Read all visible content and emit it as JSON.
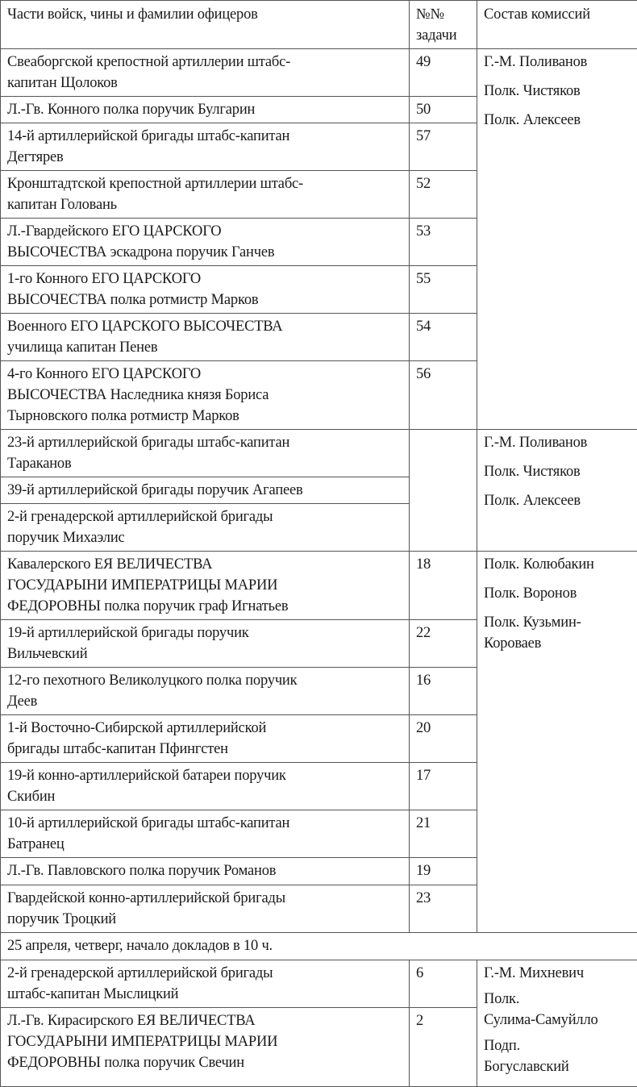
{
  "header": {
    "col1": "Части войск, чины и фамилии офицеров",
    "col2": "№№\nзадачи",
    "col3": "Состав комиссий"
  },
  "groups": [
    {
      "committee": [
        "Г.-М. Поливанов",
        "Полк. Чистяков",
        "Полк. Алексеев"
      ],
      "merge_task": false,
      "rows": [
        {
          "unit": "Свеаборгской крепостной артиллерии штабс-\nкапитан Щолоков",
          "task": "49",
          "h": 57
        },
        {
          "unit": "Л.-Гв. Конного полка поручик Булгарин",
          "task": "50",
          "h": 33
        },
        {
          "unit": "14-й артиллерийской бригады штабс-капитан\nДегтярев",
          "task": "57",
          "h": 55
        },
        {
          "unit": "Кронштадтской крепостной артиллерии штабс-\nкапитан Головань",
          "task": "52",
          "h": 57
        },
        {
          "unit": "Л.-Гвардейского ЕГО ЦАРСКОГО\nВЫСОЧЕСТВА эскадрона поручик Ганчев",
          "task": "53",
          "h": 56
        },
        {
          "unit": "1-го Конного ЕГО ЦАРСКОГО\nВЫСОЧЕСТВА полка ротмистр Марков",
          "task": "55",
          "h": 56
        },
        {
          "unit": "Военного ЕГО ЦАРСКОГО ВЫСОЧЕСТВА\nучилища капитан Пенев",
          "task": "54",
          "h": 56
        },
        {
          "unit": "4-го Конного ЕГО ЦАРСКОГО\nВЫСОЧЕСТВА Наследника князя Бориса\nТырновского полка ротмистр Марков",
          "task": "56",
          "h": 84
        }
      ]
    },
    {
      "committee": [
        "Г.-М. Поливанов",
        "Полк. Чистяков",
        "Полк. Алексеев"
      ],
      "merge_task": true,
      "rows": [
        {
          "unit": "23-й артиллерийской бригады штабс-капитан\nТараканов",
          "task": "",
          "h": 56
        },
        {
          "unit": "39-й артиллерийской бригады поручик Агапеев",
          "task": "",
          "h": 33
        },
        {
          "unit": "2-й гренадерской артиллерийской бригады\nпоручик Михаэлис",
          "task": "",
          "h": 55
        }
      ]
    },
    {
      "committee": [
        "Полк. Колюбакин",
        "Полк. Воронов",
        "Полк. Кузьмин-\nКороваев"
      ],
      "merge_task": false,
      "rows": [
        {
          "unit": "Кавалерского ЕЯ ВЕЛИЧЕСТВА\nГОСУДАРЫНИ ИМПЕРАТРИЦЫ МАРИИ\nФЕДОРОВНЫ полка поручик граф Игнатьев",
          "task": "18",
          "h": 84
        },
        {
          "unit": "19-й артиллерийской бригады поручик\nВильчевский",
          "task": "22",
          "h": 56
        },
        {
          "unit": "12-го пехотного Великолуцкого полка поручик\nДеев",
          "task": "16",
          "h": 56
        },
        {
          "unit": "1-й Восточно-Сибирской артиллерийской\nбригады штабс-капитан Пфингстен",
          "task": "20",
          "h": 56
        },
        {
          "unit": "19-й конно-артиллерийской батареи поручик\nСкибин",
          "task": "17",
          "h": 56
        },
        {
          "unit": "10-й артиллерийской бригады штабс-капитан\nБатранец",
          "task": "21",
          "h": 58
        },
        {
          "unit": "Л.-Гв. Павловского полка поручик Романов",
          "task": "19",
          "h": 34
        },
        {
          "unit": "Гвардейской конно-артиллерийской бригады\nпоручик Троцкий",
          "task": "23",
          "h": 56
        }
      ]
    },
    {
      "date": "25 апреля, четверг, начало докладов в 10 ч."
    },
    {
      "committee": [
        "Г.-М. Михневич",
        "Полк.\nСулима-Самуйлло",
        "Подп.\nБогуславский"
      ],
      "merge_task": false,
      "tight": true,
      "rows": [
        {
          "unit": "2-й гренадерской артиллерийской бригады\nштабс-капитан Мыслицкий",
          "task": "6",
          "h": 54
        },
        {
          "unit": "Л.-Гв. Кирасирского ЕЯ ВЕЛИЧЕСТВА\nГОСУДАРЫНИ ИМПЕРАТРИЦЫ МАРИИ\nФЕДОРОВНЫ полка поручик Свечин",
          "task": "2",
          "h": 98
        }
      ]
    }
  ]
}
